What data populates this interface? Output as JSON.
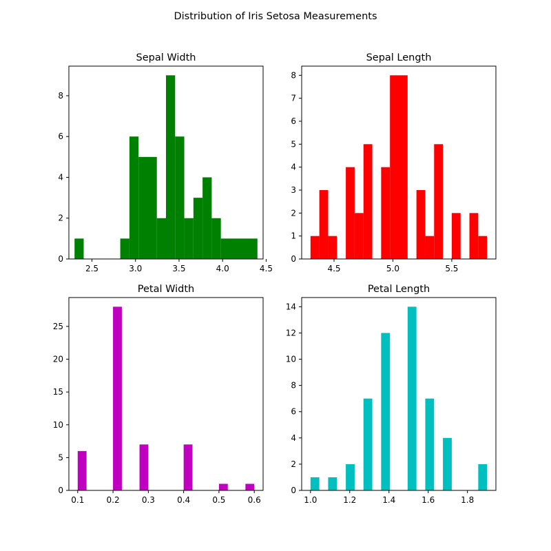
{
  "figure": {
    "suptitle": "Distribution of Iris Setosa Measurements"
  },
  "chart_data": [
    {
      "id": "sepal-width",
      "type": "bar",
      "title": "Sepal Width",
      "xlabel": "",
      "ylabel": "",
      "color": "#008000",
      "xlim": [
        2.235,
        4.465
      ],
      "ylim": [
        0,
        9.45
      ],
      "xticks": [
        {
          "v": 2.5,
          "label": "2.5"
        },
        {
          "v": 3.0,
          "label": "3.0"
        },
        {
          "v": 3.5,
          "label": "3.5"
        },
        {
          "v": 4.0,
          "label": "4.0"
        },
        {
          "v": 4.5,
          "label": "4.5"
        }
      ],
      "yticks": [
        {
          "v": 0,
          "label": "0"
        },
        {
          "v": 2,
          "label": "2"
        },
        {
          "v": 4,
          "label": "4"
        },
        {
          "v": 6,
          "label": "6"
        },
        {
          "v": 8,
          "label": "8"
        }
      ],
      "bins": [
        {
          "x0": 2.3,
          "x1": 2.405,
          "count": 1
        },
        {
          "x0": 2.825,
          "x1": 2.93,
          "count": 1
        },
        {
          "x0": 2.93,
          "x1": 3.035,
          "count": 6
        },
        {
          "x0": 3.035,
          "x1": 3.245,
          "count": 5
        },
        {
          "x0": 3.245,
          "x1": 3.35,
          "count": 2
        },
        {
          "x0": 3.35,
          "x1": 3.455,
          "count": 9
        },
        {
          "x0": 3.455,
          "x1": 3.56,
          "count": 6
        },
        {
          "x0": 3.56,
          "x1": 3.665,
          "count": 2
        },
        {
          "x0": 3.665,
          "x1": 3.77,
          "count": 3
        },
        {
          "x0": 3.77,
          "x1": 3.875,
          "count": 4
        },
        {
          "x0": 3.875,
          "x1": 3.98,
          "count": 2
        },
        {
          "x0": 3.98,
          "x1": 4.4,
          "count": 1
        }
      ]
    },
    {
      "id": "sepal-length",
      "type": "bar",
      "title": "Sepal Length",
      "xlabel": "",
      "ylabel": "",
      "color": "#ff0000",
      "xlim": [
        4.225,
        5.875
      ],
      "ylim": [
        0,
        8.4
      ],
      "xticks": [
        {
          "v": 4.5,
          "label": "4.5"
        },
        {
          "v": 5.0,
          "label": "5.0"
        },
        {
          "v": 5.5,
          "label": "5.5"
        }
      ],
      "yticks": [
        {
          "v": 0,
          "label": "0"
        },
        {
          "v": 1,
          "label": "1"
        },
        {
          "v": 2,
          "label": "2"
        },
        {
          "v": 3,
          "label": "3"
        },
        {
          "v": 4,
          "label": "4"
        },
        {
          "v": 5,
          "label": "5"
        },
        {
          "v": 6,
          "label": "6"
        },
        {
          "v": 7,
          "label": "7"
        },
        {
          "v": 8,
          "label": "8"
        }
      ],
      "bins": [
        {
          "x0": 4.3,
          "x1": 4.375,
          "count": 1
        },
        {
          "x0": 4.375,
          "x1": 4.45,
          "count": 3
        },
        {
          "x0": 4.45,
          "x1": 4.525,
          "count": 1
        },
        {
          "x0": 4.6,
          "x1": 4.675,
          "count": 4
        },
        {
          "x0": 4.675,
          "x1": 4.75,
          "count": 2
        },
        {
          "x0": 4.75,
          "x1": 4.825,
          "count": 5
        },
        {
          "x0": 4.9,
          "x1": 4.975,
          "count": 4
        },
        {
          "x0": 4.975,
          "x1": 5.125,
          "count": 8
        },
        {
          "x0": 5.2,
          "x1": 5.275,
          "count": 3
        },
        {
          "x0": 5.275,
          "x1": 5.35,
          "count": 1
        },
        {
          "x0": 5.35,
          "x1": 5.425,
          "count": 5
        },
        {
          "x0": 5.5,
          "x1": 5.575,
          "count": 2
        },
        {
          "x0": 5.65,
          "x1": 5.725,
          "count": 2
        },
        {
          "x0": 5.725,
          "x1": 5.8,
          "count": 1
        }
      ]
    },
    {
      "id": "petal-width",
      "type": "bar",
      "title": "Petal Width",
      "xlabel": "",
      "ylabel": "",
      "color": "#bf00bf",
      "xlim": [
        0.075,
        0.625
      ],
      "ylim": [
        0,
        29.4
      ],
      "xticks": [
        {
          "v": 0.1,
          "label": "0.1"
        },
        {
          "v": 0.2,
          "label": "0.2"
        },
        {
          "v": 0.3,
          "label": "0.3"
        },
        {
          "v": 0.4,
          "label": "0.4"
        },
        {
          "v": 0.5,
          "label": "0.5"
        },
        {
          "v": 0.6,
          "label": "0.6"
        }
      ],
      "yticks": [
        {
          "v": 0,
          "label": "0"
        },
        {
          "v": 5,
          "label": "5"
        },
        {
          "v": 10,
          "label": "10"
        },
        {
          "v": 15,
          "label": "15"
        },
        {
          "v": 20,
          "label": "20"
        },
        {
          "v": 25,
          "label": "25"
        }
      ],
      "bins": [
        {
          "x0": 0.1,
          "x1": 0.125,
          "count": 6
        },
        {
          "x0": 0.2,
          "x1": 0.225,
          "count": 28
        },
        {
          "x0": 0.275,
          "x1": 0.3,
          "count": 7
        },
        {
          "x0": 0.4,
          "x1": 0.425,
          "count": 7
        },
        {
          "x0": 0.5,
          "x1": 0.525,
          "count": 1
        },
        {
          "x0": 0.575,
          "x1": 0.6,
          "count": 1
        }
      ]
    },
    {
      "id": "petal-length",
      "type": "bar",
      "title": "Petal Length",
      "xlabel": "",
      "ylabel": "",
      "color": "#00bfbf",
      "xlim": [
        0.955,
        1.945
      ],
      "ylim": [
        0,
        14.7
      ],
      "xticks": [
        {
          "v": 1.0,
          "label": "1.0"
        },
        {
          "v": 1.2,
          "label": "1.2"
        },
        {
          "v": 1.4,
          "label": "1.4"
        },
        {
          "v": 1.6,
          "label": "1.6"
        },
        {
          "v": 1.8,
          "label": "1.8"
        }
      ],
      "yticks": [
        {
          "v": 0,
          "label": "0"
        },
        {
          "v": 2,
          "label": "2"
        },
        {
          "v": 4,
          "label": "4"
        },
        {
          "v": 6,
          "label": "6"
        },
        {
          "v": 8,
          "label": "8"
        },
        {
          "v": 10,
          "label": "10"
        },
        {
          "v": 12,
          "label": "12"
        },
        {
          "v": 14,
          "label": "14"
        }
      ],
      "bins": [
        {
          "x0": 1.0,
          "x1": 1.045,
          "count": 1
        },
        {
          "x0": 1.09,
          "x1": 1.135,
          "count": 1
        },
        {
          "x0": 1.18,
          "x1": 1.225,
          "count": 2
        },
        {
          "x0": 1.27,
          "x1": 1.315,
          "count": 7
        },
        {
          "x0": 1.36,
          "x1": 1.405,
          "count": 12
        },
        {
          "x0": 1.495,
          "x1": 1.54,
          "count": 14
        },
        {
          "x0": 1.585,
          "x1": 1.63,
          "count": 7
        },
        {
          "x0": 1.675,
          "x1": 1.72,
          "count": 4
        },
        {
          "x0": 1.855,
          "x1": 1.9,
          "count": 2
        }
      ]
    }
  ]
}
